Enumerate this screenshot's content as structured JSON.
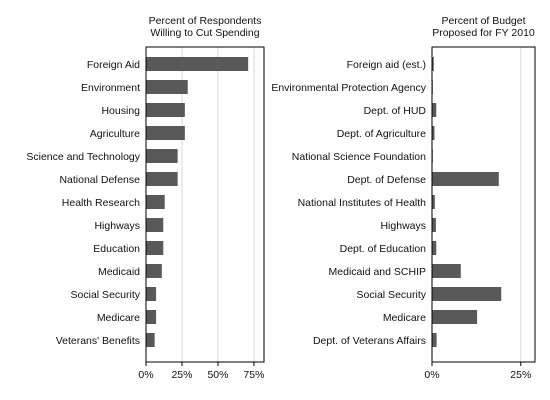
{
  "chart_data": [
    {
      "type": "bar",
      "orientation": "horizontal",
      "title": "Percent of Respondents\nWilling to Cut Spending",
      "categories": [
        "Foreign Aid",
        "Environment",
        "Housing",
        "Agriculture",
        "Science and Technology",
        "National Defense",
        "Health Research",
        "Highways",
        "Education",
        "Medicaid",
        "Social Security",
        "Medicare",
        "Veterans' Benefits"
      ],
      "values": [
        71,
        29,
        27,
        27,
        22,
        22,
        13,
        12,
        12,
        11,
        7,
        7,
        6
      ],
      "xlim": [
        0,
        82
      ],
      "ticks": [
        0,
        25,
        50,
        75
      ],
      "tick_labels": [
        "0%",
        "25%",
        "50%",
        "75%"
      ],
      "grid": "vertical",
      "bar_color": "#595959"
    },
    {
      "type": "bar",
      "orientation": "horizontal",
      "title": "Percent of Budget\nProposed for FY 2010",
      "categories": [
        "Foreign aid (est.)",
        "Environmental Protection Agency",
        "Dept. of HUD",
        "Dept. of Agriculture",
        "National Science Foundation",
        "Dept. of Defense",
        "National Institutes of Health",
        "Highways",
        "Dept. of Education",
        "Medicaid and SCHIP",
        "Social Security",
        "Medicare",
        "Dept. of Veterans Affairs"
      ],
      "values": [
        0.5,
        0.2,
        1.2,
        0.7,
        0.2,
        18.8,
        0.8,
        1.1,
        1.2,
        8.1,
        19.5,
        12.7,
        1.3
      ],
      "xlim": [
        0,
        29
      ],
      "ticks": [
        0,
        25
      ],
      "tick_labels": [
        "0%",
        "25%"
      ],
      "grid": "vertical",
      "bar_color": "#595959"
    }
  ]
}
